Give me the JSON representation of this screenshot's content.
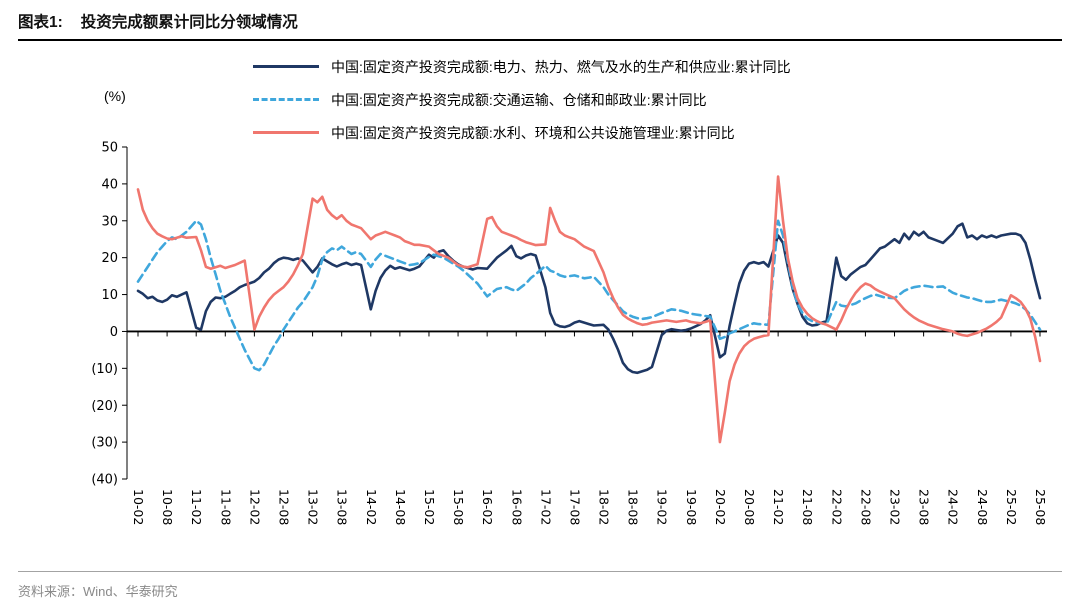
{
  "header": {
    "figure_label": "图表1:"
  },
  "footer": {
    "source": "资料来源：Wind、华泰研究"
  },
  "chart_data": {
    "type": "line",
    "title": "投资完成额累计同比分领域情况",
    "ylabel": "(%)",
    "xlabel": "",
    "ylim": [
      -40,
      50
    ],
    "ytick_step": 10,
    "grid": false,
    "legend_position": "top",
    "yticks_display": [
      "50",
      "40",
      "30",
      "20",
      "10",
      "0",
      "(10)",
      "(20)",
      "(30)",
      "(40)"
    ],
    "x_tick_labels": [
      "10-02",
      "10-08",
      "11-02",
      "11-08",
      "12-02",
      "12-08",
      "13-02",
      "13-08",
      "14-02",
      "14-08",
      "15-02",
      "15-08",
      "16-02",
      "16-08",
      "17-02",
      "17-08",
      "18-02",
      "18-08",
      "19-02",
      "19-08",
      "20-02",
      "20-08",
      "21-02",
      "21-08",
      "22-02",
      "22-08",
      "23-02",
      "23-08",
      "24-02",
      "24-08",
      "25-02",
      "25-08"
    ],
    "x": [
      "10-02",
      "10-03",
      "10-04",
      "10-05",
      "10-06",
      "10-07",
      "10-08",
      "10-09",
      "10-10",
      "10-11",
      "10-12",
      "11-02",
      "11-03",
      "11-04",
      "11-05",
      "11-06",
      "11-07",
      "11-08",
      "11-09",
      "11-10",
      "11-11",
      "11-12",
      "12-02",
      "12-03",
      "12-04",
      "12-05",
      "12-06",
      "12-07",
      "12-08",
      "12-09",
      "12-10",
      "12-11",
      "12-12",
      "13-02",
      "13-03",
      "13-04",
      "13-05",
      "13-06",
      "13-07",
      "13-08",
      "13-09",
      "13-10",
      "13-11",
      "13-12",
      "14-02",
      "14-03",
      "14-04",
      "14-05",
      "14-06",
      "14-07",
      "14-08",
      "14-09",
      "14-10",
      "14-11",
      "14-12",
      "15-02",
      "15-03",
      "15-04",
      "15-05",
      "15-06",
      "15-07",
      "15-08",
      "15-09",
      "15-10",
      "15-11",
      "15-12",
      "16-02",
      "16-03",
      "16-04",
      "16-05",
      "16-06",
      "16-07",
      "16-08",
      "16-09",
      "16-10",
      "16-11",
      "16-12",
      "17-02",
      "17-03",
      "17-04",
      "17-05",
      "17-06",
      "17-07",
      "17-08",
      "17-09",
      "17-10",
      "17-11",
      "17-12",
      "18-02",
      "18-03",
      "18-04",
      "18-05",
      "18-06",
      "18-07",
      "18-08",
      "18-09",
      "18-10",
      "18-11",
      "18-12",
      "19-02",
      "19-03",
      "19-04",
      "19-05",
      "19-06",
      "19-07",
      "19-08",
      "19-09",
      "19-10",
      "19-11",
      "19-12",
      "20-02",
      "20-03",
      "20-04",
      "20-05",
      "20-06",
      "20-07",
      "20-08",
      "20-09",
      "20-10",
      "20-11",
      "20-12",
      "21-02",
      "21-03",
      "21-04",
      "21-05",
      "21-06",
      "21-07",
      "21-08",
      "21-09",
      "21-10",
      "21-11",
      "21-12",
      "22-02",
      "22-03",
      "22-04",
      "22-05",
      "22-06",
      "22-07",
      "22-08",
      "22-09",
      "22-10",
      "22-11",
      "22-12",
      "23-02",
      "23-03",
      "23-04",
      "23-05",
      "23-06",
      "23-07",
      "23-08",
      "23-09",
      "23-10",
      "23-11",
      "23-12",
      "24-02",
      "24-03",
      "24-04",
      "24-05",
      "24-06",
      "24-07",
      "24-08",
      "24-09",
      "24-10",
      "24-11",
      "24-12",
      "25-02",
      "25-03",
      "25-04",
      "25-05",
      "25-06",
      "25-07",
      "25-08"
    ],
    "series": [
      {
        "name": "中国:固定资产投资完成额:电力、热力、燃气及水的生产和供应业:累计同比",
        "color": "#1F3864",
        "style": "solid",
        "values": [
          11.0,
          10.2,
          9.0,
          9.4,
          8.4,
          8.0,
          8.6,
          9.8,
          9.4,
          10.0,
          10.6,
          1.0,
          0.5,
          5.5,
          8.0,
          9.2,
          9.0,
          9.4,
          10.2,
          11.0,
          12.0,
          12.6,
          13.5,
          14.5,
          16.0,
          17.0,
          18.5,
          19.5,
          20.0,
          19.8,
          19.4,
          19.8,
          19.2,
          16.0,
          17.5,
          19.8,
          19.0,
          18.2,
          17.6,
          18.2,
          18.6,
          18.0,
          18.4,
          18.0,
          6.0,
          11.0,
          14.5,
          16.5,
          17.8,
          17.0,
          17.4,
          17.0,
          16.6,
          17.0,
          17.6,
          20.8,
          20.0,
          21.6,
          22.0,
          20.4,
          19.2,
          18.2,
          17.6,
          17.2,
          16.8,
          17.2,
          17.0,
          18.5,
          20.0,
          21.0,
          22.0,
          23.2,
          20.4,
          19.8,
          20.6,
          21.0,
          20.6,
          12.0,
          5.0,
          2.0,
          1.4,
          1.2,
          1.6,
          2.4,
          2.8,
          2.4,
          2.0,
          1.6,
          1.8,
          0.5,
          -2.0,
          -5.0,
          -8.5,
          -10.2,
          -11.0,
          -11.2,
          -10.8,
          -10.4,
          -9.6,
          -1.0,
          0.2,
          0.6,
          0.4,
          0.2,
          0.4,
          0.8,
          1.4,
          2.0,
          3.0,
          4.4,
          -7.0,
          -6.0,
          1.5,
          7.5,
          13.0,
          16.5,
          18.4,
          18.8,
          18.4,
          18.8,
          17.6,
          26.0,
          24.0,
          17.5,
          11.5,
          7.5,
          4.0,
          2.2,
          1.6,
          1.8,
          2.4,
          2.8,
          20.0,
          15.0,
          14.0,
          15.5,
          16.5,
          17.5,
          18.0,
          19.5,
          21.0,
          22.5,
          23.0,
          25.0,
          24.0,
          26.5,
          25.0,
          27.0,
          26.0,
          27.0,
          25.5,
          25.0,
          24.5,
          24.0,
          26.5,
          28.5,
          29.2,
          25.5,
          26.0,
          25.0,
          26.0,
          25.5,
          26.0,
          25.5,
          26.0,
          26.5,
          26.5,
          26.0,
          24.0,
          19.5,
          14.0,
          9.0
        ]
      },
      {
        "name": "中国:固定资产投资完成额:交通运输、仓储和邮政业:累计同比",
        "color": "#3FA7DC",
        "style": "dashed",
        "values": [
          13.5,
          15.5,
          17.5,
          19.5,
          21.5,
          23.0,
          24.5,
          25.5,
          25.0,
          26.0,
          27.0,
          30.0,
          29.0,
          25.0,
          20.0,
          15.5,
          11.0,
          7.5,
          4.0,
          1.0,
          -2.0,
          -5.0,
          -10.0,
          -10.5,
          -9.0,
          -6.5,
          -4.0,
          -2.0,
          0.5,
          2.5,
          4.5,
          6.5,
          8.0,
          12.0,
          15.0,
          19.5,
          21.5,
          22.5,
          22.0,
          23.0,
          22.0,
          21.0,
          21.5,
          21.0,
          17.5,
          19.5,
          21.0,
          20.5,
          20.0,
          19.5,
          19.0,
          18.5,
          18.0,
          18.2,
          18.5,
          20.2,
          20.8,
          20.4,
          20.0,
          19.2,
          18.4,
          17.6,
          16.6,
          15.4,
          14.2,
          13.0,
          9.5,
          10.5,
          11.5,
          11.8,
          12.0,
          11.4,
          11.0,
          12.0,
          13.0,
          14.5,
          15.5,
          17.8,
          16.5,
          16.0,
          15.2,
          14.8,
          15.0,
          15.2,
          14.8,
          14.4,
          14.6,
          14.8,
          12.0,
          10.0,
          8.5,
          7.0,
          5.5,
          4.6,
          4.0,
          3.6,
          3.4,
          3.6,
          3.9,
          5.0,
          5.5,
          6.0,
          5.8,
          5.6,
          5.2,
          4.8,
          4.6,
          4.4,
          4.2,
          4.0,
          -2.0,
          -1.5,
          -0.5,
          0.0,
          0.6,
          1.2,
          1.8,
          2.2,
          2.0,
          1.9,
          1.8,
          30.0,
          26.0,
          19.0,
          12.0,
          7.5,
          5.0,
          3.5,
          2.8,
          2.4,
          2.2,
          2.0,
          8.0,
          7.0,
          6.8,
          7.2,
          7.6,
          8.4,
          9.0,
          9.6,
          10.0,
          9.6,
          9.2,
          9.0,
          10.0,
          11.0,
          11.6,
          12.0,
          12.2,
          12.4,
          12.2,
          12.0,
          12.1,
          12.2,
          10.5,
          10.0,
          9.6,
          9.2,
          9.0,
          8.6,
          8.2,
          8.0,
          8.0,
          8.3,
          8.6,
          8.0,
          7.6,
          7.0,
          6.0,
          4.5,
          2.5,
          0.5
        ]
      },
      {
        "name": "中国:固定资产投资完成额:水利、环境和公共设施管理业:累计同比",
        "color": "#F0766E",
        "style": "solid",
        "values": [
          38.5,
          33.0,
          30.0,
          28.0,
          26.5,
          25.8,
          25.2,
          25.0,
          25.4,
          25.8,
          25.4,
          25.6,
          22.0,
          17.5,
          17.0,
          17.4,
          17.8,
          17.2,
          17.6,
          18.0,
          18.6,
          19.2,
          0.5,
          4.0,
          6.5,
          8.5,
          10.0,
          11.0,
          12.0,
          13.5,
          15.5,
          18.0,
          21.0,
          36.0,
          35.0,
          36.5,
          33.0,
          31.5,
          30.5,
          31.5,
          30.0,
          29.0,
          28.5,
          28.0,
          25.0,
          26.0,
          26.5,
          27.0,
          26.5,
          26.0,
          25.5,
          24.5,
          24.0,
          23.5,
          23.5,
          23.0,
          22.0,
          21.0,
          20.5,
          20.0,
          19.0,
          18.0,
          17.6,
          17.4,
          17.8,
          18.2,
          30.5,
          31.0,
          28.5,
          27.0,
          26.5,
          26.0,
          25.5,
          24.8,
          24.2,
          23.8,
          23.4,
          23.6,
          33.5,
          30.0,
          27.0,
          26.0,
          25.5,
          25.0,
          24.0,
          23.0,
          22.4,
          21.8,
          16.0,
          12.0,
          9.0,
          6.5,
          4.5,
          3.5,
          2.8,
          2.2,
          1.8,
          2.0,
          2.4,
          2.8,
          3.0,
          2.8,
          2.6,
          2.8,
          3.0,
          2.6,
          2.4,
          2.2,
          2.6,
          3.0,
          -30.0,
          -22.0,
          -13.5,
          -9.0,
          -6.0,
          -4.0,
          -2.8,
          -2.0,
          -1.6,
          -1.2,
          -1.0,
          42.0,
          30.0,
          20.0,
          13.5,
          9.0,
          6.5,
          4.8,
          3.6,
          2.8,
          2.2,
          1.8,
          0.5,
          3.0,
          6.0,
          8.5,
          10.5,
          12.0,
          13.0,
          12.5,
          11.5,
          10.8,
          10.2,
          9.0,
          7.5,
          6.0,
          4.8,
          3.8,
          3.0,
          2.4,
          1.8,
          1.4,
          1.0,
          0.6,
          0.0,
          -0.6,
          -1.0,
          -1.2,
          -0.8,
          -0.4,
          0.2,
          0.8,
          1.6,
          2.6,
          3.8,
          9.8,
          9.0,
          8.0,
          6.2,
          3.5,
          -1.5,
          -8.0
        ]
      }
    ]
  }
}
